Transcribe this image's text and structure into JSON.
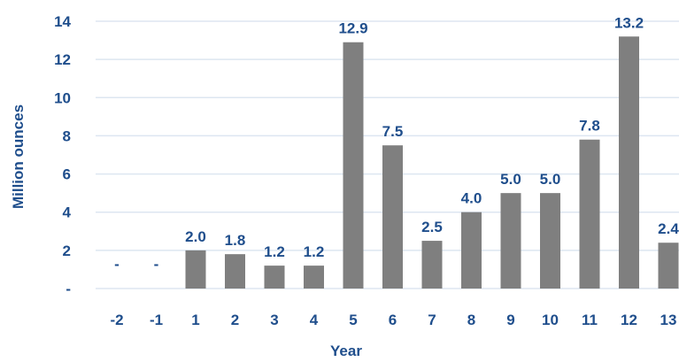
{
  "chart_data": {
    "type": "bar",
    "xlabel": "Year",
    "ylabel": "Million ounces",
    "ylim": [
      0,
      14
    ],
    "yticks": [
      0,
      2,
      4,
      6,
      8,
      10,
      12,
      14
    ],
    "ytick_labels": [
      "-",
      "2",
      "4",
      "6",
      "8",
      "10",
      "12",
      "14"
    ],
    "grid": "horizontal",
    "categories": [
      "-2",
      "-1",
      "1",
      "2",
      "3",
      "4",
      "5",
      "6",
      "7",
      "8",
      "9",
      "10",
      "11",
      "12",
      "13"
    ],
    "values": [
      0,
      0,
      2.0,
      1.8,
      1.2,
      1.2,
      12.9,
      7.5,
      2.5,
      4.0,
      5.0,
      5.0,
      7.8,
      13.2,
      2.4
    ],
    "data_labels": [
      "-",
      "-",
      "2.0",
      "1.8",
      "1.2",
      "1.2",
      "12.9",
      "7.5",
      "2.5",
      "4.0",
      "5.0",
      "5.0",
      "7.8",
      "13.2",
      "2.4"
    ],
    "colors": {
      "bar": "#7f7f7f",
      "text": "#1f4e8c",
      "grid": "#dde6f1"
    }
  }
}
